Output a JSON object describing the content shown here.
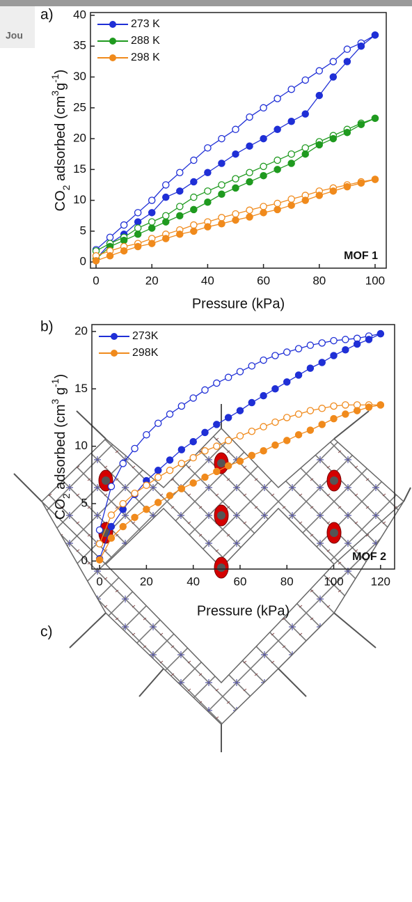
{
  "header_fragment": "Jou",
  "chart_data": [
    {
      "type": "line",
      "panel": "a)",
      "annotation": "MOF 1",
      "xlabel": "Pressure (kPa)",
      "ylabel_parts": [
        "CO",
        "2",
        " adsorbed (cm",
        "3",
        "g",
        "-1",
        ")"
      ],
      "xlim": [
        -2,
        104
      ],
      "ylim": [
        -1,
        40.45
      ],
      "xticks": [
        0,
        20,
        40,
        60,
        80,
        100
      ],
      "yticks": [
        0,
        5,
        10,
        15,
        20,
        25,
        30,
        35,
        40
      ],
      "legend": "upper left",
      "x": [
        0,
        5,
        10,
        15,
        20,
        25,
        30,
        35,
        40,
        45,
        50,
        55,
        60,
        65,
        70,
        75,
        80,
        85,
        90,
        95,
        100
      ],
      "series": [
        {
          "name": "273 K",
          "color": "#1f2fd6",
          "values": [
            0.5,
            3,
            4.5,
            6.5,
            8,
            10.5,
            11.5,
            13,
            14.5,
            16,
            17.5,
            18.8,
            20,
            21.5,
            22.8,
            24,
            27,
            30,
            32.5,
            35,
            36.8
          ],
          "values_desorption": [
            2,
            4,
            6,
            8,
            10,
            12.5,
            14.5,
            16.5,
            18.5,
            20,
            21.5,
            23.5,
            25,
            26.5,
            28,
            29.5,
            31,
            32.5,
            34.5,
            35.5,
            36.8
          ]
        },
        {
          "name": "288 K",
          "color": "#1f9a1f",
          "values": [
            0.5,
            2.5,
            3.5,
            4.5,
            5.5,
            6.5,
            7.5,
            8.5,
            9.7,
            11,
            12,
            13,
            14,
            15,
            16,
            17.5,
            19,
            20,
            21,
            22.3,
            23.3
          ],
          "values_desorption": [
            1.8,
            3,
            4,
            5.5,
            6.5,
            7.5,
            9,
            10.5,
            11.5,
            12.5,
            13.5,
            14.5,
            15.5,
            16.5,
            17.5,
            18.5,
            19.5,
            20.5,
            21.5,
            22.5,
            23.3
          ]
        },
        {
          "name": "298 K",
          "color": "#f08a1c",
          "values": [
            0.2,
            1,
            1.8,
            2.5,
            3,
            3.8,
            4.5,
            5,
            5.7,
            6.2,
            6.8,
            7.3,
            8,
            8.5,
            9.2,
            10,
            10.8,
            11.5,
            12.2,
            12.8,
            13.4
          ],
          "values_desorption": [
            1,
            1.8,
            2.5,
            3,
            3.8,
            4.5,
            5.2,
            6,
            6.5,
            7.2,
            7.8,
            8.4,
            9,
            9.5,
            10.2,
            10.8,
            11.5,
            12,
            12.5,
            13,
            13.4
          ]
        }
      ]
    },
    {
      "type": "line",
      "panel": "b)",
      "annotation": "MOF 2",
      "xlabel": "Pressure (kPa)",
      "ylabel_parts": [
        "CO",
        "2",
        " adsorbed (cm",
        "3",
        " g",
        "-1",
        ")"
      ],
      "xlim": [
        -3.3,
        126
      ],
      "ylim": [
        -0.7,
        20.6
      ],
      "xticks": [
        0,
        20,
        40,
        60,
        80,
        100,
        120
      ],
      "yticks": [
        0,
        5,
        10,
        15,
        20
      ],
      "legend": "upper left",
      "x": [
        0,
        5,
        10,
        15,
        20,
        25,
        30,
        35,
        40,
        45,
        50,
        55,
        60,
        65,
        70,
        75,
        80,
        85,
        90,
        95,
        100,
        105,
        110,
        115,
        120
      ],
      "series": [
        {
          "name": "273K",
          "color": "#1f2fd6",
          "values": [
            0.2,
            3,
            4.5,
            5.8,
            7,
            7.9,
            8.8,
            9.7,
            10.4,
            11.2,
            11.9,
            12.5,
            13.1,
            13.8,
            14.4,
            15,
            15.6,
            16.2,
            16.8,
            17.3,
            17.9,
            18.4,
            18.9,
            19.3,
            19.8
          ],
          "values_desorption": [
            2.7,
            6.5,
            8.5,
            9.8,
            11,
            12,
            12.8,
            13.5,
            14.2,
            14.9,
            15.5,
            16,
            16.5,
            17,
            17.5,
            17.9,
            18.2,
            18.5,
            18.8,
            19,
            19.2,
            19.3,
            19.4,
            19.6,
            19.8
          ]
        },
        {
          "name": "298K",
          "color": "#f08a1c",
          "values": [
            0.1,
            2,
            3,
            3.8,
            4.5,
            5.1,
            5.7,
            6.3,
            6.8,
            7.3,
            7.8,
            8.3,
            8.7,
            9.2,
            9.6,
            10.1,
            10.5,
            11,
            11.4,
            11.9,
            12.4,
            12.8,
            13.1,
            13.4,
            13.6
          ],
          "values_desorption": [
            1.5,
            4,
            5,
            5.9,
            6.6,
            7.3,
            7.9,
            8.5,
            9,
            9.6,
            10,
            10.5,
            10.9,
            11.3,
            11.7,
            12.1,
            12.5,
            12.8,
            13.1,
            13.3,
            13.5,
            13.6,
            13.6,
            13.6,
            13.6
          ]
        }
      ]
    }
  ],
  "structure_panel": "c)"
}
